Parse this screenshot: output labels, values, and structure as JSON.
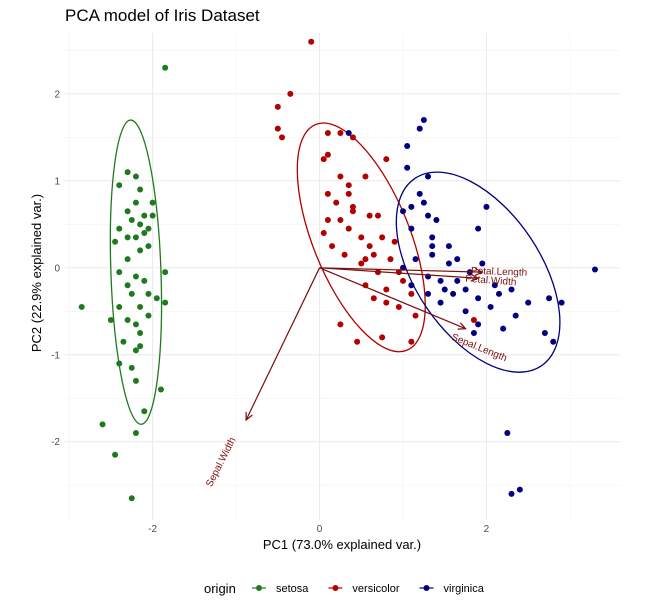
{
  "chart_data": {
    "type": "scatter",
    "title": "PCA model of Iris Dataset",
    "xlabel": "PC1 (73.0% explained var.)",
    "ylabel": "PC2 (22.9% explained var.)",
    "xlim": [
      -3.05,
      3.6
    ],
    "ylim": [
      -2.9,
      2.7
    ],
    "x_ticks": [
      -2,
      0,
      2
    ],
    "y_ticks": [
      -2,
      -1,
      0,
      1,
      2
    ],
    "grid": true,
    "legend": {
      "title": "origin",
      "position": "bottom"
    },
    "series": [
      {
        "name": "setosa",
        "color": "#1f7a1f",
        "points": [
          [
            -2.3,
            1.1
          ],
          [
            -2.2,
            1.05
          ],
          [
            -2.4,
            0.95
          ],
          [
            -2.15,
            0.9
          ],
          [
            -2.2,
            0.75
          ],
          [
            -2.0,
            0.75
          ],
          [
            -2.3,
            0.65
          ],
          [
            -2.0,
            0.6
          ],
          [
            -2.1,
            0.6
          ],
          [
            -2.25,
            0.55
          ],
          [
            -2.15,
            0.5
          ],
          [
            -2.4,
            0.45
          ],
          [
            -2.05,
            0.45
          ],
          [
            -2.1,
            0.4
          ],
          [
            -2.3,
            0.35
          ],
          [
            -2.2,
            0.35
          ],
          [
            -2.45,
            0.3
          ],
          [
            -2.05,
            0.25
          ],
          [
            -2.15,
            0.2
          ],
          [
            -2.3,
            0.1
          ],
          [
            -2.4,
            -0.05
          ],
          [
            -2.2,
            -0.1
          ],
          [
            -1.85,
            -0.05
          ],
          [
            -2.1,
            -0.15
          ],
          [
            -2.3,
            -0.2
          ],
          [
            -2.25,
            -0.3
          ],
          [
            -2.05,
            -0.3
          ],
          [
            -1.95,
            -0.35
          ],
          [
            -1.85,
            -0.4
          ],
          [
            -2.15,
            -0.45
          ],
          [
            -2.85,
            -0.45
          ],
          [
            -2.4,
            -0.45
          ],
          [
            -2.5,
            -0.6
          ],
          [
            -2.3,
            -0.6
          ],
          [
            -2.05,
            -0.55
          ],
          [
            -2.2,
            -0.65
          ],
          [
            -2.15,
            -0.75
          ],
          [
            -2.35,
            -0.85
          ],
          [
            -2.2,
            -0.95
          ],
          [
            -2.15,
            -0.9
          ],
          [
            -2.4,
            -1.1
          ],
          [
            -2.25,
            -1.15
          ],
          [
            -2.2,
            -1.3
          ],
          [
            -1.9,
            -1.4
          ],
          [
            -2.1,
            -1.65
          ],
          [
            -2.6,
            -1.8
          ],
          [
            -2.2,
            -1.9
          ],
          [
            -2.45,
            -2.15
          ],
          [
            -2.25,
            -2.65
          ],
          [
            -1.85,
            2.3
          ]
        ]
      },
      {
        "name": "versicolor",
        "color": "#b30000",
        "points": [
          [
            -0.1,
            2.6
          ],
          [
            -0.35,
            2.0
          ],
          [
            -0.5,
            1.85
          ],
          [
            -0.5,
            1.6
          ],
          [
            -0.45,
            1.5
          ],
          [
            0.1,
            1.55
          ],
          [
            0.25,
            1.55
          ],
          [
            0.1,
            1.3
          ],
          [
            0.4,
            1.5
          ],
          [
            0.8,
            1.25
          ],
          [
            0.05,
            1.25
          ],
          [
            0.25,
            1.05
          ],
          [
            0.55,
            1.05
          ],
          [
            0.35,
            0.95
          ],
          [
            0.35,
            0.85
          ],
          [
            0.1,
            0.85
          ],
          [
            0.2,
            0.75
          ],
          [
            0.4,
            0.7
          ],
          [
            0.1,
            0.55
          ],
          [
            0.25,
            0.55
          ],
          [
            0.4,
            0.65
          ],
          [
            0.6,
            0.6
          ],
          [
            0.7,
            0.6
          ],
          [
            0.35,
            0.45
          ],
          [
            0.5,
            0.35
          ],
          [
            0.75,
            0.35
          ],
          [
            0.6,
            0.25
          ],
          [
            0.55,
            0.1
          ],
          [
            0.9,
            0.3
          ],
          [
            0.15,
            0.25
          ],
          [
            0.05,
            0.4
          ],
          [
            0.3,
            0.15
          ],
          [
            0.5,
            0.05
          ],
          [
            0.65,
            0.15
          ],
          [
            0.85,
            0.1
          ],
          [
            0.7,
            -0.05
          ],
          [
            0.95,
            -0.05
          ],
          [
            0.55,
            -0.2
          ],
          [
            0.8,
            -0.25
          ],
          [
            1.0,
            -0.15
          ],
          [
            0.65,
            -0.35
          ],
          [
            0.8,
            -0.4
          ],
          [
            1.1,
            -0.3
          ],
          [
            0.95,
            -0.45
          ],
          [
            1.15,
            -0.55
          ],
          [
            0.45,
            -0.85
          ],
          [
            0.75,
            -0.8
          ],
          [
            1.1,
            -0.85
          ],
          [
            0.25,
            -0.65
          ],
          [
            1.85,
            -0.6
          ]
        ]
      },
      {
        "name": "virginica",
        "color": "#000080",
        "points": [
          [
            1.25,
            1.7
          ],
          [
            1.2,
            1.6
          ],
          [
            0.35,
            1.55
          ],
          [
            1.05,
            1.4
          ],
          [
            1.05,
            1.15
          ],
          [
            1.3,
            1.05
          ],
          [
            1.2,
            0.85
          ],
          [
            1.25,
            0.75
          ],
          [
            1.1,
            0.7
          ],
          [
            1.0,
            0.65
          ],
          [
            1.3,
            0.6
          ],
          [
            1.4,
            0.55
          ],
          [
            1.1,
            0.45
          ],
          [
            1.9,
            0.45
          ],
          [
            2.0,
            0.7
          ],
          [
            1.35,
            0.35
          ],
          [
            1.35,
            0.25
          ],
          [
            1.55,
            0.25
          ],
          [
            1.35,
            0.15
          ],
          [
            1.15,
            0.1
          ],
          [
            1.55,
            0.05
          ],
          [
            1.65,
            0.1
          ],
          [
            1.95,
            0.05
          ],
          [
            1.0,
            0.0
          ],
          [
            1.8,
            -0.05
          ],
          [
            1.3,
            -0.1
          ],
          [
            1.45,
            -0.15
          ],
          [
            1.65,
            -0.15
          ],
          [
            2.1,
            -0.2
          ],
          [
            1.5,
            -0.25
          ],
          [
            1.75,
            -0.25
          ],
          [
            1.1,
            -0.2
          ],
          [
            1.6,
            -0.3
          ],
          [
            1.9,
            -0.35
          ],
          [
            2.15,
            -0.3
          ],
          [
            2.3,
            -0.25
          ],
          [
            1.45,
            -0.4
          ],
          [
            2.05,
            -0.45
          ],
          [
            2.5,
            -0.4
          ],
          [
            2.75,
            -0.35
          ],
          [
            2.9,
            -0.4
          ],
          [
            1.75,
            -0.5
          ],
          [
            1.9,
            -0.65
          ],
          [
            2.35,
            -0.55
          ],
          [
            1.85,
            -0.75
          ],
          [
            2.2,
            -0.7
          ],
          [
            2.7,
            -0.75
          ],
          [
            2.8,
            -0.85
          ],
          [
            2.25,
            -1.9
          ],
          [
            2.3,
            -2.6
          ],
          [
            2.4,
            -2.55
          ],
          [
            3.3,
            -0.02
          ],
          [
            1.3,
            -0.3
          ]
        ]
      }
    ],
    "ellipses": [
      {
        "series": "setosa",
        "cx": -2.2,
        "cy": -0.05,
        "rx": 0.3,
        "ry": 1.75,
        "angle": -2
      },
      {
        "series": "versicolor",
        "cx": 0.5,
        "cy": 0.35,
        "rx": 0.58,
        "ry": 1.4,
        "angle": -22
      },
      {
        "series": "virginica",
        "cx": 1.9,
        "cy": -0.05,
        "rx": 0.75,
        "ry": 1.3,
        "angle": -34
      }
    ],
    "loadings": {
      "color": "#7a0f0f",
      "origin": [
        0,
        0
      ],
      "arrows": [
        {
          "label": "Petal.Length",
          "x": 1.95,
          "y": -0.05,
          "label_x": 2.15,
          "label_y": -0.08,
          "label_angle": 2
        },
        {
          "label": "Petal.Width",
          "x": 1.9,
          "y": -0.12,
          "label_x": 2.05,
          "label_y": -0.18,
          "label_angle": 4
        },
        {
          "label": "Sepal.Length",
          "x": 1.75,
          "y": -0.7,
          "label_x": 1.9,
          "label_y": -0.95,
          "label_angle": 22
        },
        {
          "label": "Sepal.Width",
          "x": -0.88,
          "y": -1.75,
          "label_x": -1.15,
          "label_y": -2.25,
          "label_angle": -63
        }
      ]
    }
  }
}
